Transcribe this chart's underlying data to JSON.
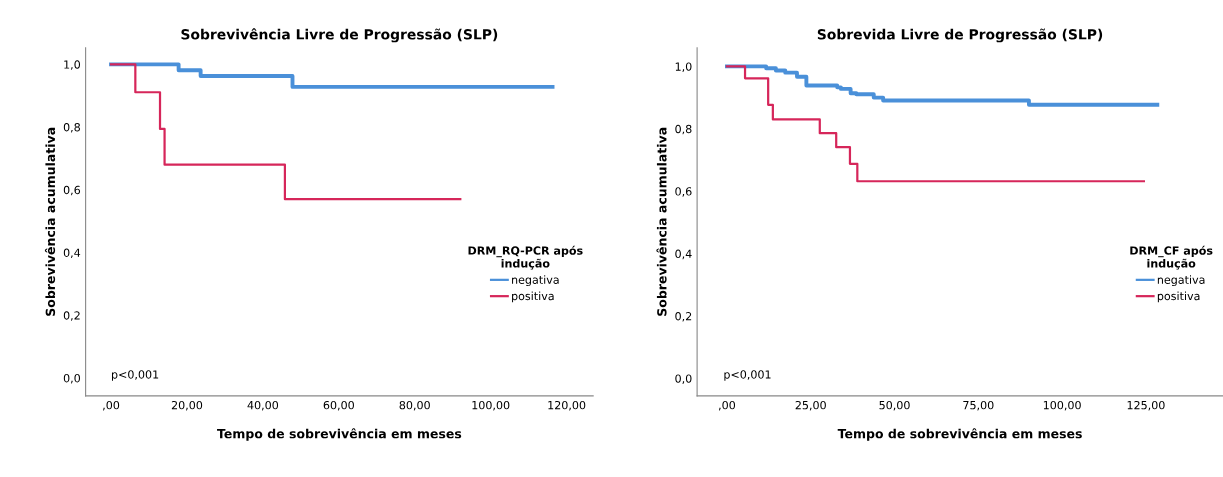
{
  "chart_data": [
    {
      "type": "step",
      "title": "Sobrevivência Livre de Progressão (SLP)",
      "xlabel": "Tempo de sobrevivência em meses",
      "ylabel": "Sobrevivência acumulativa",
      "legend_title": "DRM_RQ-PCR após\nindução",
      "annotations": [
        "p<0,001"
      ],
      "legend": "right",
      "grid": false,
      "xlim": [
        -6.7,
        127
      ],
      "ylim": [
        -0.057,
        1.053
      ],
      "xticks": [
        {
          "value": 0,
          "label": ",00"
        },
        {
          "value": 20,
          "label": "20,00"
        },
        {
          "value": 40,
          "label": "40,00"
        },
        {
          "value": 60,
          "label": "60,00"
        },
        {
          "value": 80,
          "label": "80,00"
        },
        {
          "value": 100,
          "label": "100,00"
        },
        {
          "value": 120,
          "label": "120,00"
        }
      ],
      "yticks": [
        {
          "value": 0,
          "label": "0,0"
        },
        {
          "value": 0.2,
          "label": "0,2"
        },
        {
          "value": 0.4,
          "label": "0,4"
        },
        {
          "value": 0.6,
          "label": "0,6"
        },
        {
          "value": 0.8,
          "label": "0,8"
        },
        {
          "value": 1.0,
          "label": "1,0"
        }
      ],
      "series": [
        {
          "name": "negativa",
          "color": "#4a90d9",
          "x": [
            0,
            17.8,
            23.6,
            47.8,
            116.3
          ],
          "values": [
            1.0,
            0.981,
            0.963,
            0.928,
            0.928
          ]
        },
        {
          "name": "positiva",
          "color": "#d6265a",
          "x": [
            0,
            6.4,
            12.9,
            14.1,
            45.8,
            92
          ],
          "values": [
            1.0,
            0.911,
            0.794,
            0.68,
            0.57,
            0.57
          ]
        }
      ]
    },
    {
      "type": "step",
      "title": "Sobrevida Livre de Progressão (SLP)",
      "xlabel": "Tempo de sobrevivência em meses",
      "ylabel": "Sobrevivência acumulativa",
      "legend_title": "DRM_CF após\nindução",
      "annotations": [
        "p<0,001"
      ],
      "legend": "right",
      "grid": false,
      "xlim": [
        -8.9,
        148
      ],
      "ylim": [
        -0.056,
        1.06
      ],
      "xticks": [
        {
          "value": 0,
          "label": ",00"
        },
        {
          "value": 25,
          "label": "25,00"
        },
        {
          "value": 50,
          "label": "50,00"
        },
        {
          "value": 75,
          "label": "75,00"
        },
        {
          "value": 100,
          "label": "100,00"
        },
        {
          "value": 125,
          "label": "125,00"
        }
      ],
      "yticks": [
        {
          "value": 0,
          "label": "0,0"
        },
        {
          "value": 0.2,
          "label": "0,2"
        },
        {
          "value": 0.4,
          "label": "0,4"
        },
        {
          "value": 0.6,
          "label": "0,6"
        },
        {
          "value": 0.8,
          "label": "0,8"
        },
        {
          "value": 1.0,
          "label": "1,0"
        }
      ],
      "series": [
        {
          "name": "negativa",
          "color": "#4a90d9",
          "x": [
            0,
            11.7,
            14.6,
            17.4,
            20.9,
            23.7,
            26.6,
            32.9,
            34.0,
            36.9,
            38.6,
            43.8,
            46.6,
            49.5,
            90.1,
            128.4
          ],
          "values": [
            1.0,
            0.994,
            0.987,
            0.98,
            0.967,
            0.939,
            0.939,
            0.933,
            0.928,
            0.914,
            0.911,
            0.9,
            0.891,
            0.891,
            0.877,
            0.877
          ]
        },
        {
          "name": "positiva",
          "color": "#d6265a",
          "x": [
            0,
            5.4,
            12.3,
            13.7,
            27.7,
            32.6,
            36.7,
            38.9,
            124.4
          ],
          "values": [
            1.0,
            0.962,
            0.877,
            0.83,
            0.786,
            0.741,
            0.688,
            0.632,
            0.632
          ]
        }
      ]
    }
  ]
}
